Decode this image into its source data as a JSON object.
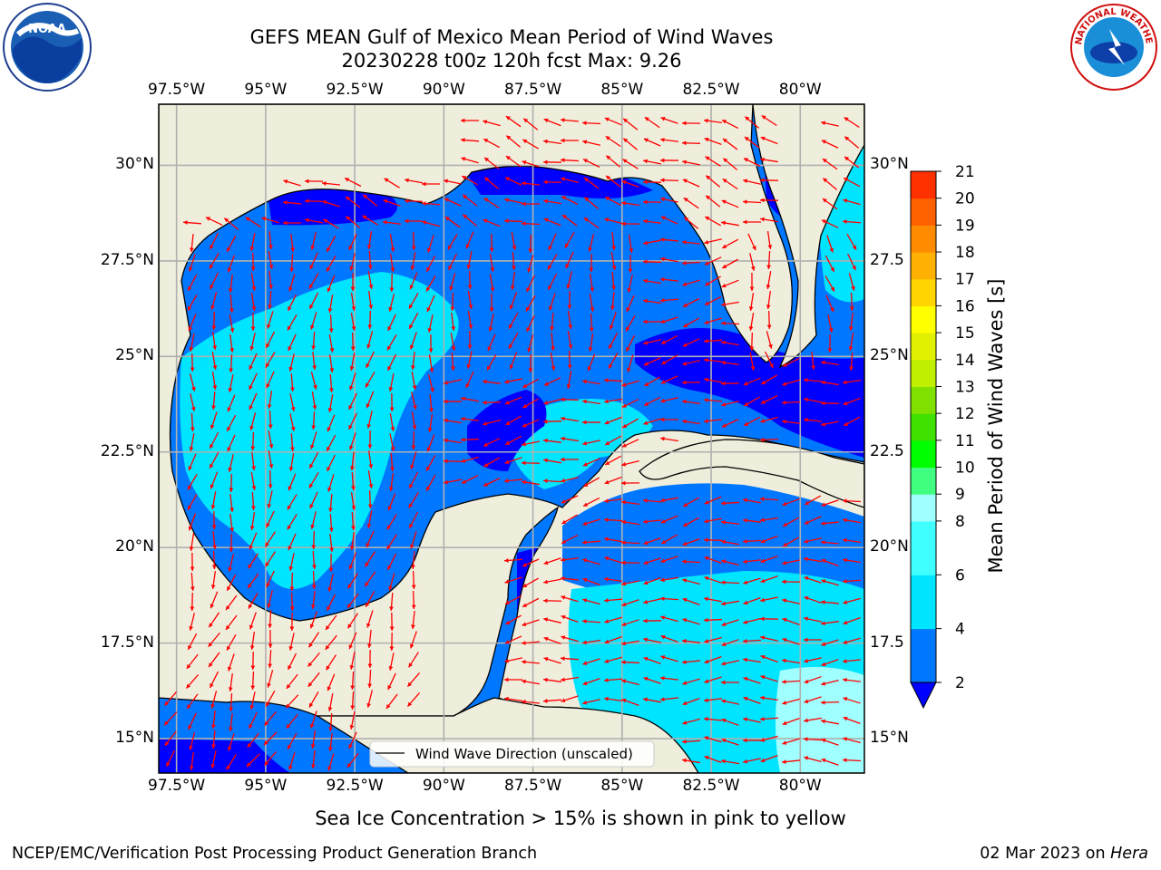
{
  "header": {
    "title_line1": "GEFS MEAN Gulf of Mexico Mean Period of Wind Waves",
    "title_line2": "20230228 t00z 120h fcst   Max: 9.26"
  },
  "logos": {
    "left": "noaa-logo",
    "left_text": "NOAA",
    "right": "nws-logo",
    "right_text": "NATIONAL WEATHER SERVICE"
  },
  "map": {
    "lon_ticks": [
      "97.5°W",
      "95°W",
      "92.5°W",
      "90°W",
      "87.5°W",
      "85°W",
      "82.5°W",
      "80°W"
    ],
    "lat_ticks_left": [
      "30°N",
      "27.5°N",
      "25°N",
      "22.5°N",
      "20°N",
      "17.5°N",
      "15°N"
    ],
    "lat_ticks_right": [
      "30°N",
      "27.5",
      "25°N",
      "22.5",
      "20°N",
      "17.5",
      "15°N"
    ],
    "lon_values": [
      -97.5,
      -95,
      -92.5,
      -90,
      -87.5,
      -85,
      -82.5,
      -80
    ],
    "lat_values": [
      30,
      27.5,
      25,
      22.5,
      20,
      17.5,
      15
    ],
    "extent": {
      "lon_min": -98,
      "lon_max": -78.2,
      "lat_min": 14.1,
      "lat_max": 31.6
    },
    "legend_label": "Wind Wave Direction (unscaled)",
    "land_color": "#efeedc",
    "arrow_color": "#ff0000",
    "grid_color": "#b0b0b0"
  },
  "colorbar": {
    "label": "Mean Period of Wind Waves [s]",
    "ticks": [
      "2",
      "4",
      "6",
      "8",
      "9",
      "10",
      "11",
      "12",
      "13",
      "14",
      "15",
      "16",
      "17",
      "18",
      "19",
      "20",
      "21"
    ],
    "levels": [
      2,
      4,
      6,
      8,
      9,
      10,
      11,
      12,
      13,
      14,
      15,
      16,
      17,
      18,
      19,
      20,
      21
    ],
    "colors": [
      "#0077ff",
      "#00e5ff",
      "#40ffff",
      "#a0ffff",
      "#40ff80",
      "#00ff00",
      "#40e000",
      "#80e000",
      "#c0f000",
      "#e0f000",
      "#ffff00",
      "#ffd400",
      "#ffb000",
      "#ff8c00",
      "#ff6000",
      "#ff3000"
    ],
    "under_color": "#0000ff"
  },
  "footer": {
    "subtitle": "Sea Ice Concentration > 15% is shown in pink to yellow",
    "credit_left": "NCEP/EMC/Verification Post Processing Product Generation Branch",
    "credit_date": "02 Mar 2023 on",
    "credit_machine": "Hera"
  }
}
